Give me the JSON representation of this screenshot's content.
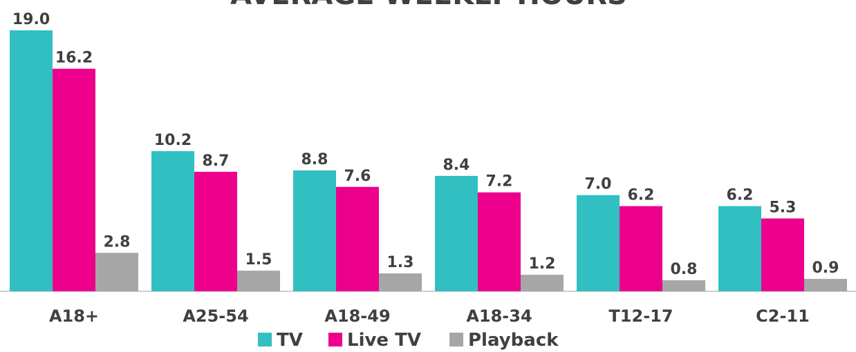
{
  "chart_data": {
    "type": "bar",
    "title": "AVERAGE WEEKLY HOURS",
    "categories": [
      "A18+",
      "A25-54",
      "A18-49",
      "A18-34",
      "T12-17",
      "C2-11"
    ],
    "series": [
      {
        "name": "TV",
        "color": "#31bfc1",
        "values": [
          19.0,
          10.2,
          8.8,
          8.4,
          7.0,
          6.2
        ],
        "value_labels": [
          "19.0",
          "10.2",
          "8.8",
          "8.4",
          "7.0",
          "6.2"
        ]
      },
      {
        "name": "Live TV",
        "color": "#ec008c",
        "values": [
          16.2,
          8.7,
          7.6,
          7.2,
          6.2,
          5.3
        ],
        "value_labels": [
          "16.2",
          "8.7",
          "7.6",
          "7.2",
          "6.2",
          "5.3"
        ]
      },
      {
        "name": "Playback",
        "color": "#a6a6a6",
        "values": [
          2.8,
          1.5,
          1.3,
          1.2,
          0.8,
          0.9
        ],
        "value_labels": [
          "2.8",
          "1.5",
          "1.3",
          "1.2",
          "0.8",
          "0.9"
        ]
      }
    ],
    "legend": "bottom"
  }
}
